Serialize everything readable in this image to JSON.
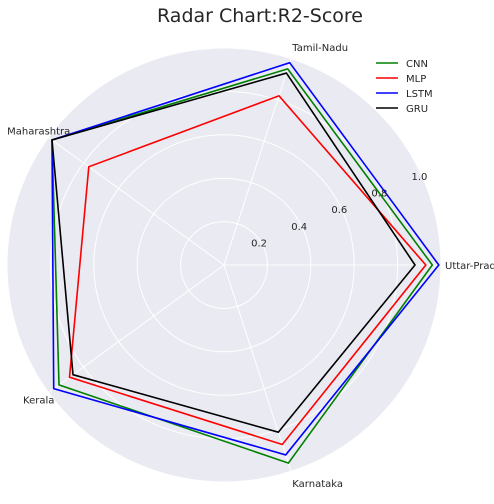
{
  "chart_data": {
    "type": "radar",
    "title": "Radar Chart:R2-Score",
    "categories": [
      "Uttar-Pradesh",
      "Tamil-Nadu",
      "Maharashtra",
      "Kerala",
      "Karnataka"
    ],
    "rlim": [
      0,
      1.0
    ],
    "rticks": [
      0.2,
      0.4,
      0.6,
      0.8,
      1.0
    ],
    "rtick_labels": [
      "0.2",
      "0.4",
      "0.6",
      "0.8",
      "1.0"
    ],
    "grid": true,
    "legend_position": "top-right",
    "series": [
      {
        "name": "CNN",
        "color": "#008000",
        "values": [
          0.96,
          0.95,
          0.98,
          0.94,
          0.96
        ]
      },
      {
        "name": "MLP",
        "color": "#ff0000",
        "values": [
          0.93,
          0.82,
          0.77,
          0.88,
          0.87
        ]
      },
      {
        "name": "LSTM",
        "color": "#0000ff",
        "values": [
          0.99,
          0.98,
          0.98,
          0.97,
          0.92
        ]
      },
      {
        "name": "GRU",
        "color": "#000000",
        "values": [
          0.88,
          0.93,
          0.98,
          0.86,
          0.81
        ]
      }
    ]
  }
}
